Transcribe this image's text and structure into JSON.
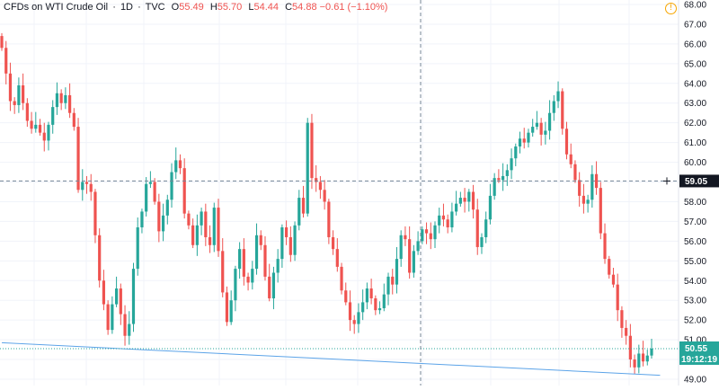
{
  "header": {
    "instrument": "CFDs on WTI Crude Oil",
    "interval": "1D",
    "source": "TVC",
    "open_label": "O",
    "open": "55.49",
    "high_label": "H",
    "high": "55.70",
    "low_label": "L",
    "low": "54.44",
    "close_label": "C",
    "close": "54.88",
    "change": "−0.61 (−1.10%)",
    "alert_icon": "!"
  },
  "colors": {
    "up": "#26a69a",
    "down": "#ef5350",
    "trendline": "#5ba3e8",
    "last_price": "#26a69a",
    "crosshair": "#758696",
    "grid": "#f0f3fa"
  },
  "price_axis": {
    "ticks": [
      "49.00",
      "50.00",
      "51.00",
      "52.00",
      "53.00",
      "54.00",
      "55.00",
      "56.00",
      "57.00",
      "58.00",
      "59.00",
      "60.00",
      "61.00",
      "62.00",
      "63.00",
      "64.00",
      "65.00",
      "66.00",
      "67.00",
      "68.00"
    ]
  },
  "crosshair_label": "59.05",
  "last_price_label": "50.55",
  "countdown_label": "19:12:19",
  "chart_data": {
    "type": "candlestick",
    "title": "CFDs on WTI Crude Oil · 1D · TVC",
    "xlabel": "",
    "ylabel": "",
    "ylim": [
      48.8,
      68.2
    ],
    "grid": true,
    "crosshair_price": 59.05,
    "last_price": 50.55,
    "trendline": [
      [
        0,
        50.85
      ],
      [
        155,
        49.2
      ]
    ],
    "closes": [
      65.8,
      64.5,
      63.1,
      62.9,
      63.9,
      63.0,
      62.1,
      61.7,
      61.9,
      61.5,
      61.1,
      61.9,
      62.8,
      63.5,
      63.0,
      63.4,
      62.5,
      61.8,
      58.6,
      59.0,
      58.9,
      58.5,
      56.3,
      54.0,
      52.8,
      51.5,
      52.8,
      53.6,
      52.3,
      51.2,
      51.8,
      54.6,
      56.7,
      57.5,
      58.9,
      59.0,
      58.0,
      56.5,
      57.3,
      58.1,
      59.5,
      60.1,
      59.7,
      57.4,
      56.8,
      55.8,
      56.8,
      57.5,
      56.2,
      55.8,
      57.7,
      55.5,
      53.4,
      51.9,
      53.0,
      54.6,
      55.6,
      54.2,
      53.9,
      54.6,
      56.3,
      55.8,
      54.2,
      53.1,
      54.4,
      55.1,
      56.7,
      56.2,
      55.3,
      56.8,
      58.2,
      57.4,
      62.0,
      59.2,
      59.0,
      58.6,
      58.0,
      56.2,
      55.6,
      54.7,
      53.5,
      52.9,
      52.0,
      51.8,
      52.4,
      52.9,
      53.6,
      53.1,
      52.5,
      52.6,
      53.3,
      54.2,
      53.8,
      55.1,
      56.3,
      56.1,
      54.4,
      55.5,
      56.0,
      56.6,
      56.4,
      56.1,
      56.8,
      57.3,
      57.1,
      56.7,
      57.5,
      57.9,
      58.2,
      58.0,
      58.5,
      57.6,
      55.7,
      56.2,
      57.1,
      58.3,
      59.2,
      59.1,
      59.3,
      59.6,
      60.2,
      60.8,
      61.2,
      61.0,
      61.5,
      61.8,
      62.0,
      61.4,
      61.6,
      62.5,
      63.1,
      63.6,
      61.7,
      60.4,
      59.9,
      59.1,
      58.3,
      57.9,
      58.1,
      59.4,
      58.7,
      56.4,
      55.1,
      54.3,
      53.8,
      52.5,
      51.6,
      51.2,
      50.0,
      49.6,
      50.3,
      49.9,
      50.2,
      50.55
    ]
  }
}
